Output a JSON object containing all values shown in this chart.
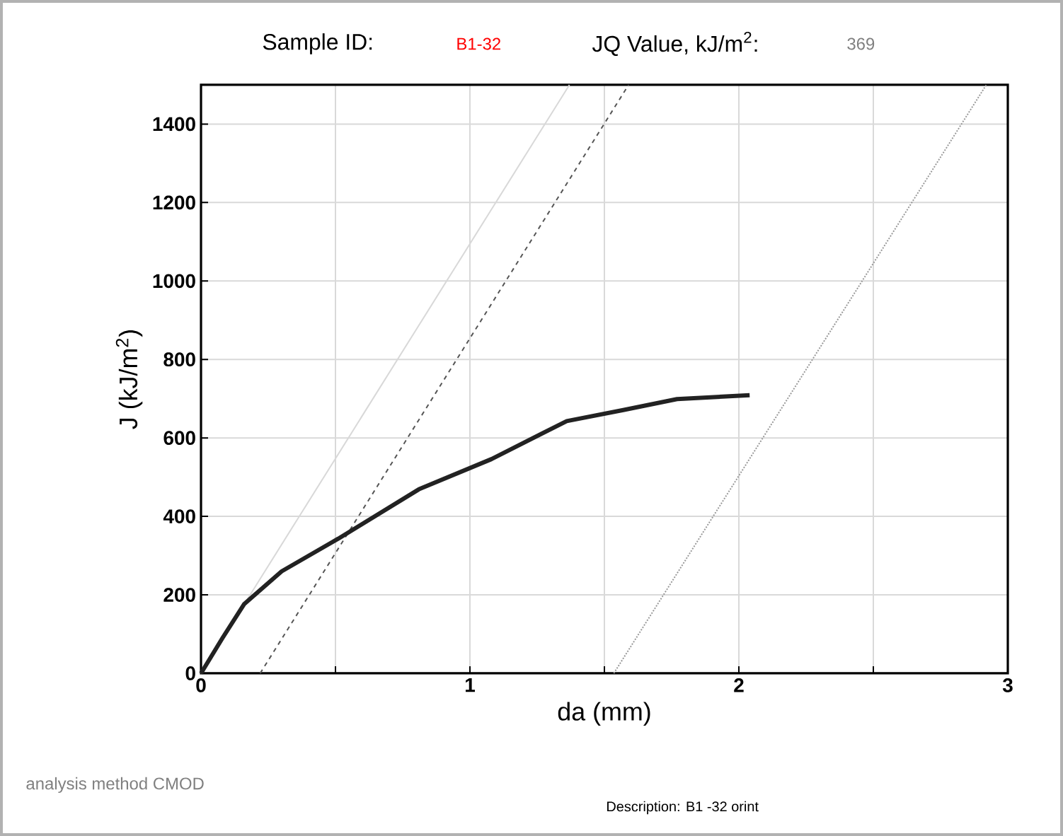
{
  "chart_data": {
    "type": "line",
    "xlabel": "da (mm)",
    "ylabel": "J (kJ/m$^{2}$)",
    "xlim": [
      0,
      3
    ],
    "ylim": [
      0,
      1500
    ],
    "xticks": [
      0,
      {
        "value": 0.5,
        "label": null
      },
      1,
      {
        "value": 1.5,
        "label": null
      },
      2,
      {
        "value": 2.5,
        "label": null
      },
      3
    ],
    "yticks": [
      0,
      200,
      400,
      600,
      800,
      1000,
      1200,
      1400
    ],
    "grid": true,
    "series": [
      {
        "color": "#d8d8d8",
        "line_style": "solid",
        "x": [
          0,
          1.37
        ],
        "values": [
          0,
          1500
        ]
      },
      {
        "color": "#555555",
        "line_style": "dashed",
        "x": [
          0.22,
          1.59
        ],
        "values": [
          0,
          1500
        ]
      },
      {
        "color": "#999999",
        "line_style": "dotted",
        "x": [
          1.535,
          2.92
        ],
        "values": [
          0,
          1500
        ]
      },
      {
        "color": "#222222",
        "line_style": "solid",
        "x": [
          0,
          0.08,
          0.16,
          0.3,
          0.51,
          0.81,
          1.08,
          1.36,
          1.57,
          1.77,
          2.04
        ],
        "values": [
          0,
          90,
          176,
          260,
          343,
          469,
          546,
          643,
          671,
          699,
          709
        ]
      }
    ],
    "annotations": [
      "Sample ID:",
      "B1-32",
      "JQ Value, kJ/m$^{2}$:",
      "369",
      "analysis method CMOD",
      "Description:  B1 -32 orint"
    ]
  }
}
